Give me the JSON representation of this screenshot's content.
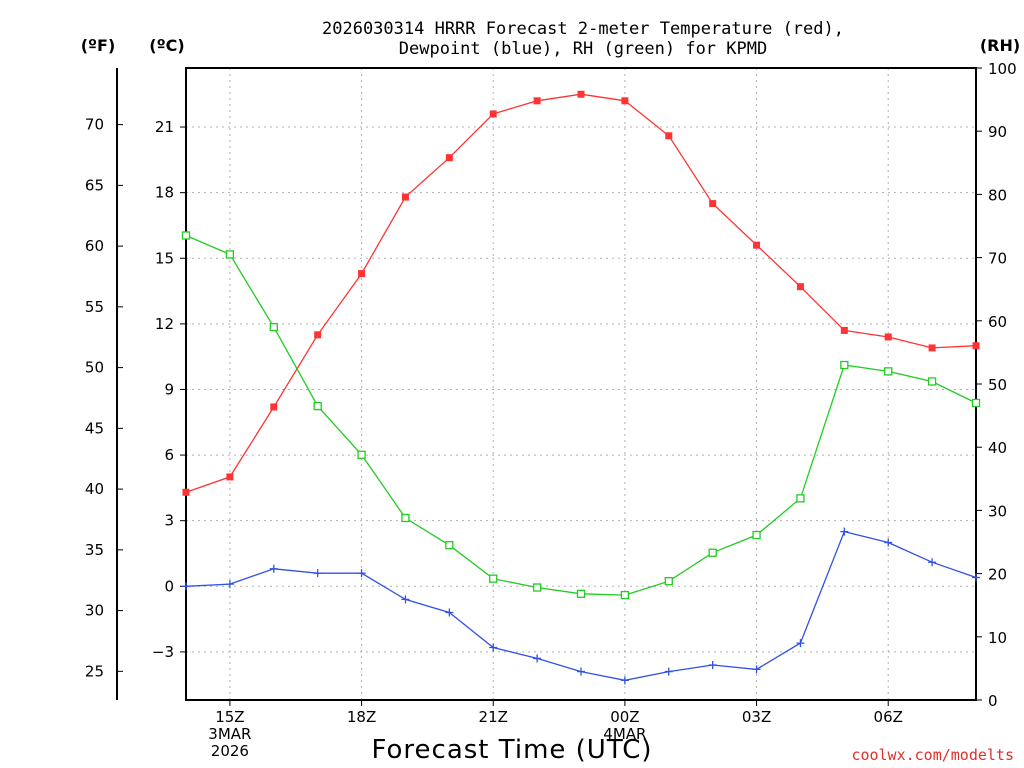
{
  "chart_data": {
    "type": "line",
    "title_lines": [
      "2026030314 HRRR Forecast 2-meter Temperature (red),",
      "Dewpoint (blue), RH (green) for KPMD"
    ],
    "units": {
      "fahrenheit": "(ºF)",
      "celsius": "(ºC)",
      "rh": "(RH)"
    },
    "xlabel": "Forecast Time (UTC)",
    "credit": "coolwx.com/modelts",
    "x_hours": [
      0,
      1,
      2,
      3,
      4,
      5,
      6,
      7,
      8,
      9,
      10,
      11,
      12,
      13,
      14,
      15,
      16,
      17,
      18
    ],
    "xlim": [
      0,
      18
    ],
    "x_ticks": [
      {
        "hour": 1,
        "lines": [
          "15Z",
          "3MAR",
          "2026"
        ]
      },
      {
        "hour": 4,
        "lines": [
          "18Z"
        ]
      },
      {
        "hour": 7,
        "lines": [
          "21Z"
        ]
      },
      {
        "hour": 10,
        "lines": [
          "00Z",
          "4MAR"
        ]
      },
      {
        "hour": 13,
        "lines": [
          "03Z"
        ]
      },
      {
        "hour": 16,
        "lines": [
          "06Z"
        ]
      }
    ],
    "celsius_axis": {
      "lim": [
        -5.2,
        23.7
      ],
      "ticks": [
        "21",
        "18",
        "15",
        "12",
        "9",
        "6",
        "3",
        "0",
        "−3"
      ],
      "values": [
        21,
        18,
        15,
        12,
        9,
        6,
        3,
        0,
        -3
      ]
    },
    "fahrenheit_axis": {
      "ticks": [
        "70",
        "65",
        "60",
        "55",
        "50",
        "45",
        "40",
        "35",
        "30",
        "25"
      ],
      "values": [
        70,
        65,
        60,
        55,
        50,
        45,
        40,
        35,
        30,
        25
      ]
    },
    "rh_axis": {
      "lim": [
        0,
        100
      ],
      "ticks": [
        "100",
        "90",
        "80",
        "70",
        "60",
        "50",
        "40",
        "30",
        "20",
        "10",
        "0"
      ],
      "values": [
        100,
        90,
        80,
        70,
        60,
        50,
        40,
        30,
        20,
        10,
        0
      ]
    },
    "series": [
      {
        "name": "Temperature",
        "color": "#ff3333",
        "marker": "filled-square",
        "axis": "celsius",
        "values": [
          4.3,
          5.0,
          8.2,
          11.5,
          14.3,
          17.8,
          19.6,
          21.6,
          22.2,
          22.5,
          22.2,
          20.6,
          17.5,
          15.6,
          13.7,
          11.7,
          11.4,
          10.9,
          11.0
        ]
      },
      {
        "name": "Dewpoint",
        "color": "#3050e8",
        "marker": "plus",
        "axis": "celsius",
        "values": [
          0.0,
          0.1,
          0.8,
          0.6,
          0.6,
          -0.6,
          -1.2,
          -2.8,
          -3.3,
          -3.9,
          -4.3,
          -3.9,
          -3.6,
          -3.8,
          -2.6,
          2.5,
          2.0,
          1.1,
          0.4
        ]
      },
      {
        "name": "RH",
        "color": "#22cc22",
        "marker": "open-square",
        "axis": "rh",
        "values": [
          73.5,
          70.5,
          59.0,
          46.5,
          38.8,
          28.8,
          24.5,
          19.2,
          17.8,
          16.8,
          16.6,
          18.8,
          23.3,
          26.1,
          31.9,
          53.0,
          52.0,
          50.4,
          47.0
        ]
      }
    ]
  }
}
